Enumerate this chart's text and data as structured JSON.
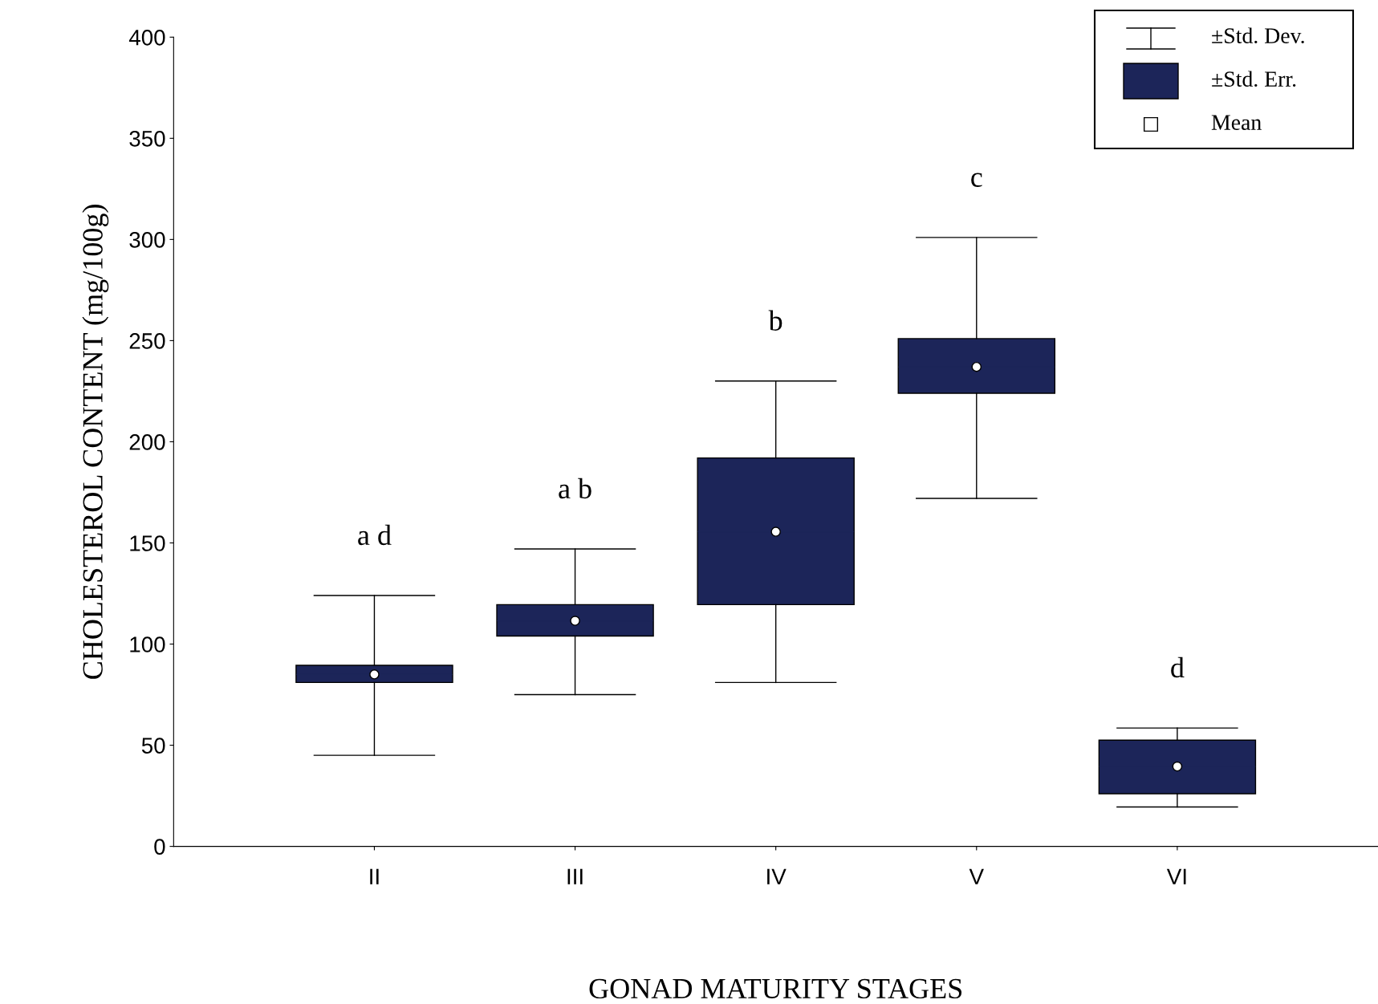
{
  "chart_data": {
    "type": "box",
    "xlabel": "GONAD MATURITY STAGES",
    "ylabel": "CHOLESTEROL CONTENT (mg/100g)",
    "categories": [
      "II",
      "III",
      "IV",
      "V",
      "VI"
    ],
    "boxes": [
      {
        "low": 45,
        "q1": 81,
        "median": 85,
        "q3": 89.5,
        "high": 124,
        "mean": 85
      },
      {
        "low": 75,
        "q1": 104,
        "median": 111.5,
        "q3": 119.5,
        "high": 147,
        "mean": 111.5
      },
      {
        "low": 81,
        "q1": 119.5,
        "median": 155.5,
        "q3": 192,
        "high": 230,
        "mean": 155.5
      },
      {
        "low": 172,
        "q1": 224,
        "median": 237,
        "q3": 251,
        "high": 301,
        "mean": 237
      },
      {
        "low": 19.5,
        "q1": 26,
        "median": 39.5,
        "q3": 52.5,
        "high": 58.5,
        "mean": 39.5
      }
    ],
    "color": "#1c2559",
    "ylim": [
      0,
      400
    ],
    "yticks": [
      0,
      50,
      100,
      150,
      200,
      250,
      300,
      350,
      400
    ],
    "grid": false,
    "annotations": [
      "a d",
      "a b",
      "b",
      "c",
      "d",
      "±Std. Dev.",
      "±Std. Err.",
      "Mean"
    ]
  }
}
